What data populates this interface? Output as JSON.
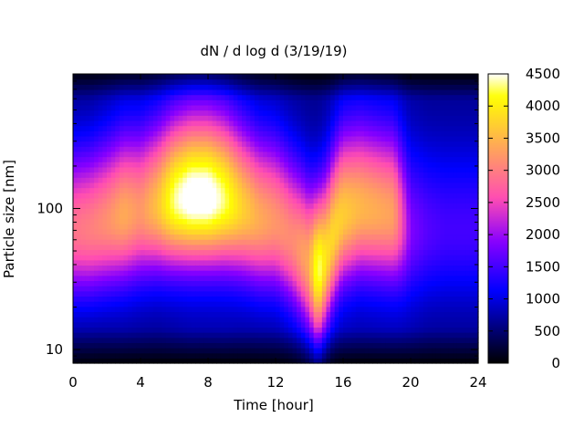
{
  "chart_data": {
    "type": "heatmap",
    "title": "dN / d log d (3/19/19)",
    "xlabel": "Time [hour]",
    "ylabel": "Particle size [nm]",
    "xlim": [
      0,
      24
    ],
    "ylim": [
      8,
      900
    ],
    "ylog": true,
    "x_ticks": [
      "0",
      "4",
      "8",
      "12",
      "16",
      "20",
      "24"
    ],
    "x_tick_values": [
      0,
      4,
      8,
      12,
      16,
      20,
      24
    ],
    "y_ticks": [
      "10",
      "100"
    ],
    "y_tick_values": [
      10,
      100
    ],
    "colorbar": {
      "range": [
        0,
        4500
      ],
      "ticks": [
        "0",
        "500",
        "1000",
        "1500",
        "2000",
        "2500",
        "3000",
        "3500",
        "4000",
        "4500"
      ],
      "tick_values": [
        0,
        500,
        1000,
        1500,
        2000,
        2500,
        3000,
        3500,
        4000,
        4500
      ],
      "palette": "gnuplot-rgbformulae-30-31-32"
    },
    "mode_profile": {
      "hours": [
        0,
        1,
        2,
        3,
        4,
        5,
        6,
        7,
        8,
        9,
        10,
        11,
        12,
        13,
        14,
        14.5,
        15,
        16,
        17,
        18,
        19,
        20,
        21,
        22,
        23,
        24
      ],
      "peak_diameter_nm": [
        70,
        72,
        80,
        90,
        95,
        105,
        115,
        120,
        120,
        115,
        100,
        85,
        80,
        60,
        40,
        35,
        45,
        90,
        100,
        95,
        90,
        70,
        70,
        70,
        70,
        70
      ],
      "peak_value": [
        2400,
        2500,
        2600,
        2800,
        2600,
        3000,
        3700,
        4000,
        4000,
        3600,
        3100,
        2800,
        2600,
        2500,
        2800,
        3800,
        3200,
        3000,
        2800,
        2700,
        2600,
        1200,
        1000,
        900,
        900,
        900
      ],
      "background": [
        500,
        500,
        550,
        600,
        600,
        600,
        650,
        700,
        700,
        700,
        650,
        600,
        600,
        600,
        600,
        600,
        650,
        700,
        700,
        700,
        700,
        650,
        600,
        600,
        600,
        600
      ]
    }
  }
}
